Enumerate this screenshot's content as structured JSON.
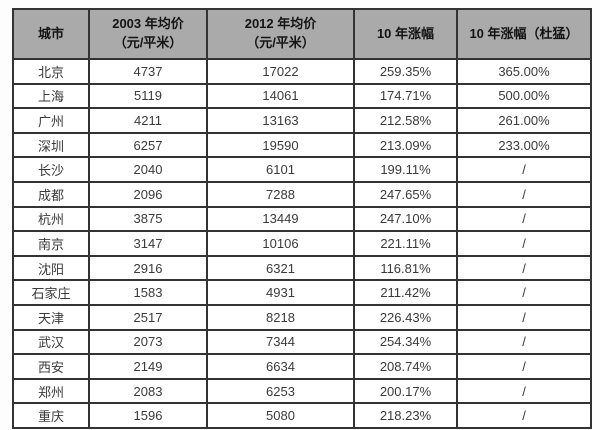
{
  "colors": {
    "header_bg": "#aaaaaa",
    "border": "#333333",
    "cell_text": "#3a3a3a",
    "header_text": "#141414",
    "row_bg": "#ffffff"
  },
  "table": {
    "headers": [
      {
        "line1": "城市",
        "line2": ""
      },
      {
        "line1": "2003 年均价",
        "line2": "（元/平米）"
      },
      {
        "line1": "2012 年均价",
        "line2": "（元/平米）"
      },
      {
        "line1": "10 年涨幅",
        "line2": ""
      },
      {
        "line1": "10 年涨幅（杜猛）",
        "line2": ""
      }
    ],
    "rows": [
      {
        "city": "北京",
        "p2003": "4737",
        "p2012": "17022",
        "growth": "259.35%",
        "dumeng": "365.00%"
      },
      {
        "city": "上海",
        "p2003": "5119",
        "p2012": "14061",
        "growth": "174.71%",
        "dumeng": "500.00%"
      },
      {
        "city": "广州",
        "p2003": "4211",
        "p2012": "13163",
        "growth": "212.58%",
        "dumeng": "261.00%"
      },
      {
        "city": "深圳",
        "p2003": "6257",
        "p2012": "19590",
        "growth": "213.09%",
        "dumeng": "233.00%"
      },
      {
        "city": "长沙",
        "p2003": "2040",
        "p2012": "6101",
        "growth": "199.11%",
        "dumeng": "/"
      },
      {
        "city": "成都",
        "p2003": "2096",
        "p2012": "7288",
        "growth": "247.65%",
        "dumeng": "/"
      },
      {
        "city": "杭州",
        "p2003": "3875",
        "p2012": "13449",
        "growth": "247.10%",
        "dumeng": "/"
      },
      {
        "city": "南京",
        "p2003": "3147",
        "p2012": "10106",
        "growth": "221.11%",
        "dumeng": "/"
      },
      {
        "city": "沈阳",
        "p2003": "2916",
        "p2012": "6321",
        "growth": "116.81%",
        "dumeng": "/"
      },
      {
        "city": "石家庄",
        "p2003": "1583",
        "p2012": "4931",
        "growth": "211.42%",
        "dumeng": "/"
      },
      {
        "city": "天津",
        "p2003": "2517",
        "p2012": "8218",
        "growth": "226.43%",
        "dumeng": "/"
      },
      {
        "city": "武汉",
        "p2003": "2073",
        "p2012": "7344",
        "growth": "254.34%",
        "dumeng": "/"
      },
      {
        "city": "西安",
        "p2003": "2149",
        "p2012": "6634",
        "growth": "208.74%",
        "dumeng": "/"
      },
      {
        "city": "郑州",
        "p2003": "2083",
        "p2012": "6253",
        "growth": "200.17%",
        "dumeng": "/"
      },
      {
        "city": "重庆",
        "p2003": "1596",
        "p2012": "5080",
        "growth": "218.23%",
        "dumeng": "/"
      }
    ]
  },
  "chart_data": {
    "type": "table",
    "title": "",
    "columns": [
      "城市",
      "2003 年均价（元/平米）",
      "2012 年均价（元/平米）",
      "10 年涨幅",
      "10 年涨幅（杜猛）"
    ],
    "rows": [
      [
        "北京",
        4737,
        17022,
        "259.35%",
        "365.00%"
      ],
      [
        "上海",
        5119,
        14061,
        "174.71%",
        "500.00%"
      ],
      [
        "广州",
        4211,
        13163,
        "212.58%",
        "261.00%"
      ],
      [
        "深圳",
        6257,
        19590,
        "213.09%",
        "233.00%"
      ],
      [
        "长沙",
        2040,
        6101,
        "199.11%",
        "/"
      ],
      [
        "成都",
        2096,
        7288,
        "247.65%",
        "/"
      ],
      [
        "杭州",
        3875,
        13449,
        "247.10%",
        "/"
      ],
      [
        "南京",
        3147,
        10106,
        "221.11%",
        "/"
      ],
      [
        "沈阳",
        2916,
        6321,
        "116.81%",
        "/"
      ],
      [
        "石家庄",
        1583,
        4931,
        "211.42%",
        "/"
      ],
      [
        "天津",
        2517,
        8218,
        "226.43%",
        "/"
      ],
      [
        "武汉",
        2073,
        7344,
        "254.34%",
        "/"
      ],
      [
        "西安",
        2149,
        6634,
        "208.74%",
        "/"
      ],
      [
        "郑州",
        2083,
        6253,
        "200.17%",
        "/"
      ],
      [
        "重庆",
        1596,
        5080,
        "218.23%",
        "/"
      ]
    ]
  }
}
